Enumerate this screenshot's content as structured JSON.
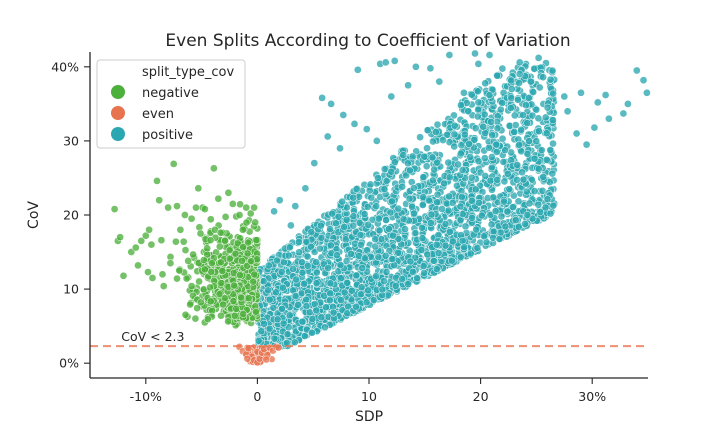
{
  "chart_data": {
    "type": "scatter",
    "title": "Even Splits According to Coefficient of Variation",
    "xlabel": "SDP",
    "ylabel": "CoV",
    "xlim": [
      -15,
      35
    ],
    "ylim": [
      -2,
      42
    ],
    "x_ticks": [
      {
        "value": -10,
        "label": "-10%"
      },
      {
        "value": 0,
        "label": "0"
      },
      {
        "value": 10,
        "label": "10"
      },
      {
        "value": 20,
        "label": "20"
      },
      {
        "value": 30,
        "label": "30%"
      }
    ],
    "y_ticks": [
      {
        "value": 0,
        "label": "0%"
      },
      {
        "value": 10,
        "label": "10"
      },
      {
        "value": 20,
        "label": "20"
      },
      {
        "value": 30,
        "label": "30"
      },
      {
        "value": 40,
        "label": "40%"
      }
    ],
    "grid": false,
    "legend": {
      "title": "split_type_cov",
      "placement": "upper-left",
      "entries": [
        {
          "name": "negative",
          "color": "#4daf3c"
        },
        {
          "name": "even",
          "color": "#e8734f"
        },
        {
          "name": "positive",
          "color": "#2aa7b0"
        }
      ]
    },
    "threshold": {
      "y": 2.3,
      "label": "CoV < 2.3",
      "color": "#e8734f",
      "style": "dashed"
    },
    "series": [
      {
        "name": "negative",
        "color": "#4daf3c",
        "points": [
          [
            -12.8,
            20.8
          ],
          [
            -12.5,
            16.5
          ],
          [
            -12.3,
            17.0
          ],
          [
            -12.0,
            11.8
          ],
          [
            -11.3,
            15.0
          ],
          [
            -10.9,
            15.6
          ],
          [
            -10.7,
            13.2
          ],
          [
            -10.4,
            16.5
          ],
          [
            -10.0,
            17.2
          ],
          [
            -9.8,
            12.3
          ],
          [
            -9.7,
            18.0
          ],
          [
            -9.5,
            16.0
          ],
          [
            -9.4,
            11.5
          ],
          [
            -9.0,
            24.6
          ],
          [
            -8.8,
            22.0
          ],
          [
            -8.6,
            16.6
          ],
          [
            -8.5,
            12.0
          ],
          [
            -8.4,
            10.4
          ],
          [
            -8.0,
            21.0
          ],
          [
            -7.8,
            13.5
          ],
          [
            -7.5,
            26.9
          ],
          [
            -7.3,
            16.4
          ],
          [
            -7.2,
            21.2
          ],
          [
            -7.0,
            12.5
          ],
          [
            -6.9,
            18.0
          ],
          [
            -6.6,
            16.4
          ],
          [
            -6.5,
            20.0
          ],
          [
            -6.2,
            13.8
          ],
          [
            -5.9,
            19.5
          ],
          [
            -5.5,
            21.0
          ],
          [
            -5.3,
            23.6
          ],
          [
            -5.1,
            17.5
          ],
          [
            -4.9,
            21.0
          ],
          [
            -4.7,
            20.8
          ],
          [
            -4.5,
            15.5
          ],
          [
            -4.2,
            16.6
          ],
          [
            -3.9,
            26.3
          ],
          [
            -3.8,
            18.0
          ],
          [
            -3.5,
            22.2
          ],
          [
            -3.3,
            17.6
          ],
          [
            -2.9,
            16.5
          ],
          [
            -2.6,
            23.0
          ],
          [
            -2.2,
            21.5
          ],
          [
            -1.9,
            19.8
          ],
          [
            -1.6,
            20.0
          ],
          [
            -1.3,
            18.0
          ],
          [
            -1.0,
            21.0
          ],
          [
            -0.6,
            20.2
          ],
          [
            -0.3,
            21.0
          ],
          [
            -0.2,
            19.0
          ]
        ]
      },
      {
        "name": "even",
        "color": "#e8734f",
        "points": [
          [
            -1.6,
            2.2
          ],
          [
            -1.3,
            1.6
          ],
          [
            -1.0,
            1.2
          ],
          [
            -0.8,
            2.0
          ],
          [
            -0.5,
            0.9
          ],
          [
            -0.3,
            0.4
          ],
          [
            0.0,
            0.1
          ],
          [
            0.2,
            0.6
          ],
          [
            0.4,
            1.4
          ],
          [
            0.6,
            1.9
          ],
          [
            0.9,
            1.1
          ],
          [
            1.1,
            2.1
          ],
          [
            1.4,
            1.7
          ],
          [
            1.7,
            2.2
          ],
          [
            -0.9,
            0.6
          ],
          [
            0.8,
            0.5
          ],
          [
            1.9,
            2.1
          ]
        ]
      },
      {
        "name": "positive",
        "color": "#2aa7b0",
        "points": [
          [
            9.0,
            39.6
          ],
          [
            11.0,
            40.4
          ],
          [
            11.5,
            40.6
          ],
          [
            12.3,
            40.8
          ],
          [
            14.2,
            40.0
          ],
          [
            15.5,
            39.8
          ],
          [
            17.2,
            41.6
          ],
          [
            19.5,
            41.8
          ],
          [
            19.8,
            40.4
          ],
          [
            20.8,
            41.6
          ],
          [
            23.5,
            40.6
          ],
          [
            25.2,
            41.2
          ],
          [
            25.6,
            38.6
          ],
          [
            26.5,
            36.4
          ],
          [
            27.5,
            36.0
          ],
          [
            29.0,
            36.5
          ],
          [
            30.5,
            35.2
          ],
          [
            31.2,
            36.2
          ],
          [
            32.8,
            33.7
          ],
          [
            34.0,
            39.5
          ],
          [
            34.6,
            38.2
          ],
          [
            34.9,
            36.5
          ],
          [
            5.8,
            35.8
          ],
          [
            6.6,
            35.0
          ],
          [
            7.7,
            33.5
          ],
          [
            8.7,
            32.3
          ],
          [
            9.8,
            31.6
          ],
          [
            10.7,
            30.0
          ],
          [
            6.3,
            30.6
          ],
          [
            7.4,
            29.0
          ],
          [
            4.3,
            23.6
          ],
          [
            3.4,
            21.2
          ],
          [
            5.1,
            27.0
          ],
          [
            2.0,
            22.0
          ],
          [
            3.0,
            18.6
          ],
          [
            1.5,
            20.5
          ],
          [
            27.8,
            34.0
          ],
          [
            28.6,
            31.0
          ],
          [
            29.5,
            29.5
          ],
          [
            30.2,
            31.8
          ],
          [
            24.5,
            38.0
          ],
          [
            21.5,
            38.8
          ],
          [
            16.3,
            38.0
          ],
          [
            13.5,
            37.5
          ],
          [
            31.5,
            33.0
          ],
          [
            33.2,
            35.0
          ],
          [
            26.0,
            34.5
          ],
          [
            18.5,
            36.5
          ],
          [
            22.8,
            37.0
          ],
          [
            12.0,
            36.0
          ]
        ]
      }
    ]
  }
}
